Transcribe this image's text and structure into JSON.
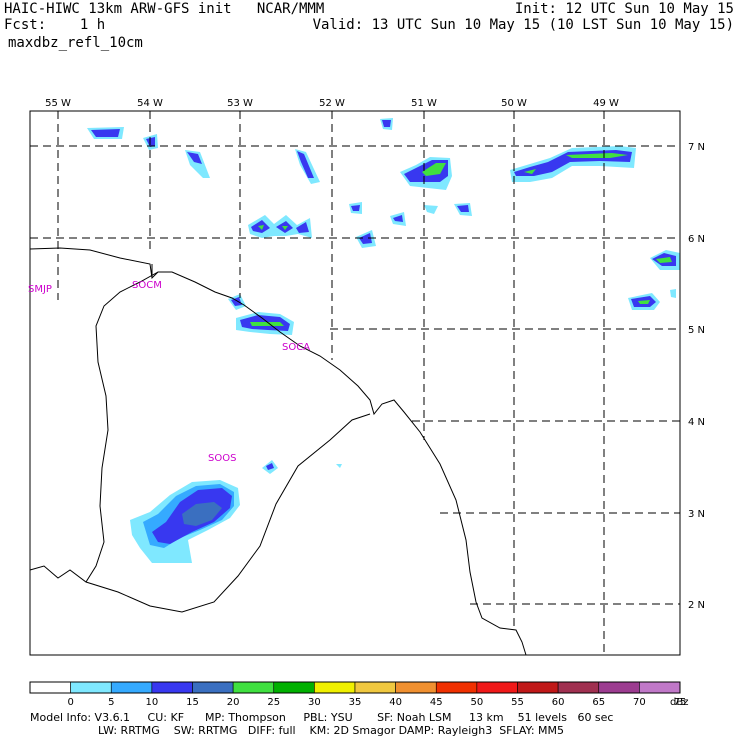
{
  "header": {
    "model_title": "HAIC-HIWC 13km ARW-GFS init   NCAR/MMM",
    "forecast": "Fcst:    1 h",
    "field": "maxdbz_refl_10cm",
    "init_time": "Init: 12 UTC Sun 10 May 15",
    "valid_time": "Valid: 13 UTC Sun 10 May 15 (10 LST Sun 10 May 15)"
  },
  "map": {
    "lon_labels": [
      "55 W",
      "54 W",
      "53 W",
      "52 W",
      "51 W",
      "50 W",
      "49 W"
    ],
    "lat_labels": [
      "7 N",
      "6 N",
      "5 N",
      "4 N",
      "3 N",
      "2 N"
    ],
    "stations": [
      "SMJP",
      "SOCM",
      "SOCA",
      "SOOS"
    ],
    "colors": {
      "frame": "#000000",
      "coast": "#000000",
      "station": "#cc00cc"
    }
  },
  "colorbar": {
    "unit": "dBz",
    "ticks": [
      "0",
      "5",
      "10",
      "15",
      "20",
      "25",
      "30",
      "35",
      "40",
      "45",
      "50",
      "55",
      "60",
      "65",
      "70",
      "75"
    ],
    "colors": [
      "#ffffff",
      "#7fe8ff",
      "#35aaff",
      "#3838f0",
      "#3a6fc0",
      "#40e040",
      "#00b000",
      "#f0f000",
      "#f0c840",
      "#f09030",
      "#f03000",
      "#f01818",
      "#c01818",
      "#a03050",
      "#9c3c90",
      "#c078c8"
    ]
  },
  "footer": {
    "line1": "Model Info: V3.6.1     CU: KF      MP: Thompson     PBL: YSU       SF: Noah LSM     13 km    51 levels   60 sec",
    "line2": "LW: RRTMG    SW: RRTMG   DIFF: full    KM: 2D Smagor DAMP: Rayleigh3  SFLAY: MM5"
  }
}
